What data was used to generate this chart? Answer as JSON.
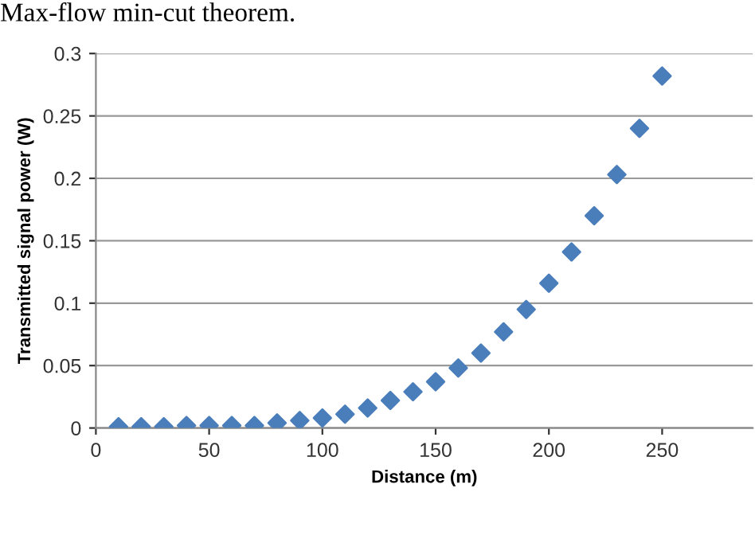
{
  "chart_data": {
    "type": "scatter",
    "xlabel": "Distance (m)",
    "ylabel": "Transmitted signal power (W)",
    "annotations": [
      "Max-flow min-cut theorem."
    ],
    "x": [
      10,
      20,
      30,
      40,
      50,
      60,
      70,
      80,
      90,
      100,
      110,
      120,
      130,
      140,
      150,
      160,
      170,
      180,
      190,
      200,
      210,
      220,
      230,
      240,
      250
    ],
    "series": [
      {
        "color": "#4a7ebb",
        "values": [
          0.001,
          0.001,
          0.001,
          0.002,
          0.002,
          0.002,
          0.002,
          0.004,
          0.006,
          0.008,
          0.011,
          0.016,
          0.022,
          0.029,
          0.037,
          0.048,
          0.06,
          0.077,
          0.095,
          0.116,
          0.141,
          0.17,
          0.203,
          0.24,
          0.282
        ]
      }
    ],
    "xlim": [
      0,
      290
    ],
    "xticks": [
      0,
      50,
      100,
      150,
      200,
      250
    ],
    "ylim": [
      0,
      0.3
    ],
    "yticks": [
      0,
      0.05,
      0.1,
      0.15,
      0.2,
      0.25,
      0.3
    ],
    "grid": "y",
    "marker": "diamond",
    "legend": false
  }
}
